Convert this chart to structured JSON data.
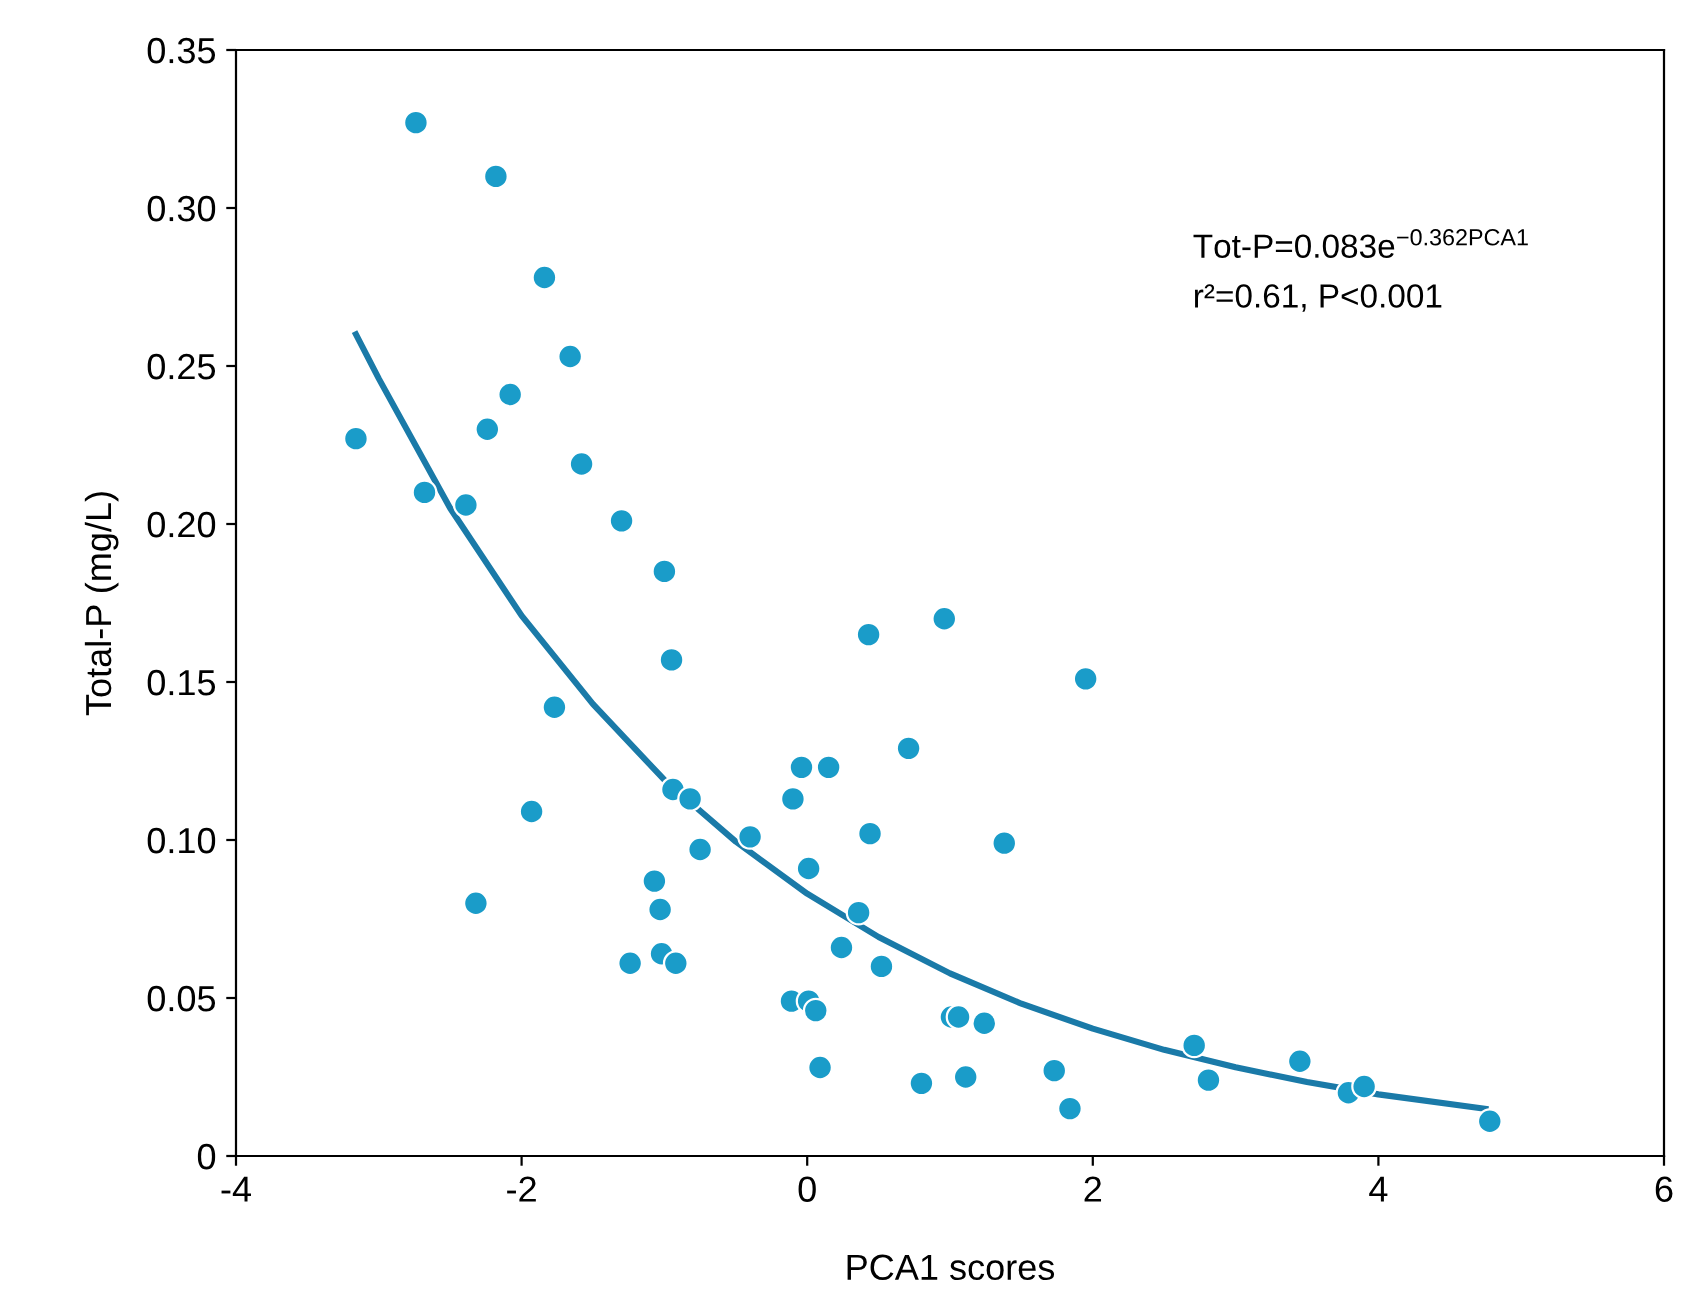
{
  "chart_data": {
    "type": "scatter",
    "xlabel": "PCA1 scores",
    "ylabel": "Total-P (mg/L)",
    "xlim": [
      -4,
      6
    ],
    "xticks": [
      -4,
      -2,
      0,
      2,
      4,
      6
    ],
    "ylim": [
      0,
      0.35
    ],
    "yticks": [
      {
        "value": 0,
        "label": "0"
      },
      {
        "value": 0.05,
        "label": "0.05"
      },
      {
        "value": 0.1,
        "label": "0.10"
      },
      {
        "value": 0.15,
        "label": "0.15"
      },
      {
        "value": 0.2,
        "label": "0.20"
      },
      {
        "value": 0.25,
        "label": "0.25"
      },
      {
        "value": 0.3,
        "label": "0.30"
      },
      {
        "value": 0.35,
        "label": "0.35"
      }
    ],
    "grid": false,
    "legend": false,
    "marker": "circle",
    "annotations": [
      "Tot-P=0.083e$^{−0.362PCA1}$",
      "r²=0.61, P<0.001"
    ],
    "series": [
      {
        "color": "#1a9cc9",
        "x": [
          -3.16,
          -2.74,
          -2.68,
          -2.18,
          -2.39,
          -2.24,
          -2.08,
          -2.32,
          -1.84,
          -1.66,
          -1.58,
          -1.77,
          -1.93,
          -1.3,
          -1.0,
          -0.95,
          -1.24,
          -1.07,
          -1.03,
          -1.02,
          -0.92,
          -0.94,
          -0.82,
          -0.75,
          -0.4,
          -0.11,
          -0.1,
          -0.04,
          0.01,
          0.01,
          0.06,
          0.09,
          0.15,
          0.24,
          0.36,
          0.43,
          0.44,
          0.52,
          0.71,
          0.8,
          0.96,
          1.01,
          1.06,
          1.11,
          1.24,
          1.38,
          1.73,
          1.84,
          1.95,
          2.71,
          2.81,
          3.45,
          3.79,
          3.9,
          4.78
        ],
        "values": [
          0.227,
          0.327,
          0.21,
          0.31,
          0.206,
          0.23,
          0.241,
          0.08,
          0.278,
          0.253,
          0.219,
          0.142,
          0.109,
          0.201,
          0.185,
          0.157,
          0.061,
          0.087,
          0.078,
          0.064,
          0.061,
          0.116,
          0.113,
          0.097,
          0.101,
          0.049,
          0.113,
          0.123,
          0.091,
          0.049,
          0.046,
          0.028,
          0.123,
          0.066,
          0.077,
          0.165,
          0.102,
          0.06,
          0.129,
          0.023,
          0.17,
          0.044,
          0.044,
          0.025,
          0.042,
          0.099,
          0.027,
          0.015,
          0.151,
          0.035,
          0.024,
          0.03,
          0.02,
          0.022,
          0.011
        ]
      },
      {
        "type": "line",
        "color": "#1a7aa8",
        "marker": "none",
        "line_style": "solid",
        "x": [
          -3.16,
          -3,
          -2.5,
          -2,
          -1.5,
          -1,
          -0.5,
          0,
          0.5,
          1,
          1.5,
          2,
          2.5,
          3,
          3.5,
          4,
          4.75
        ],
        "values": [
          0.26,
          0.246,
          0.205,
          0.171,
          0.143,
          0.119,
          0.0995,
          0.083,
          0.0693,
          0.0578,
          0.0482,
          0.0403,
          0.0336,
          0.0281,
          0.0234,
          0.0195,
          0.0149
        ]
      }
    ]
  }
}
